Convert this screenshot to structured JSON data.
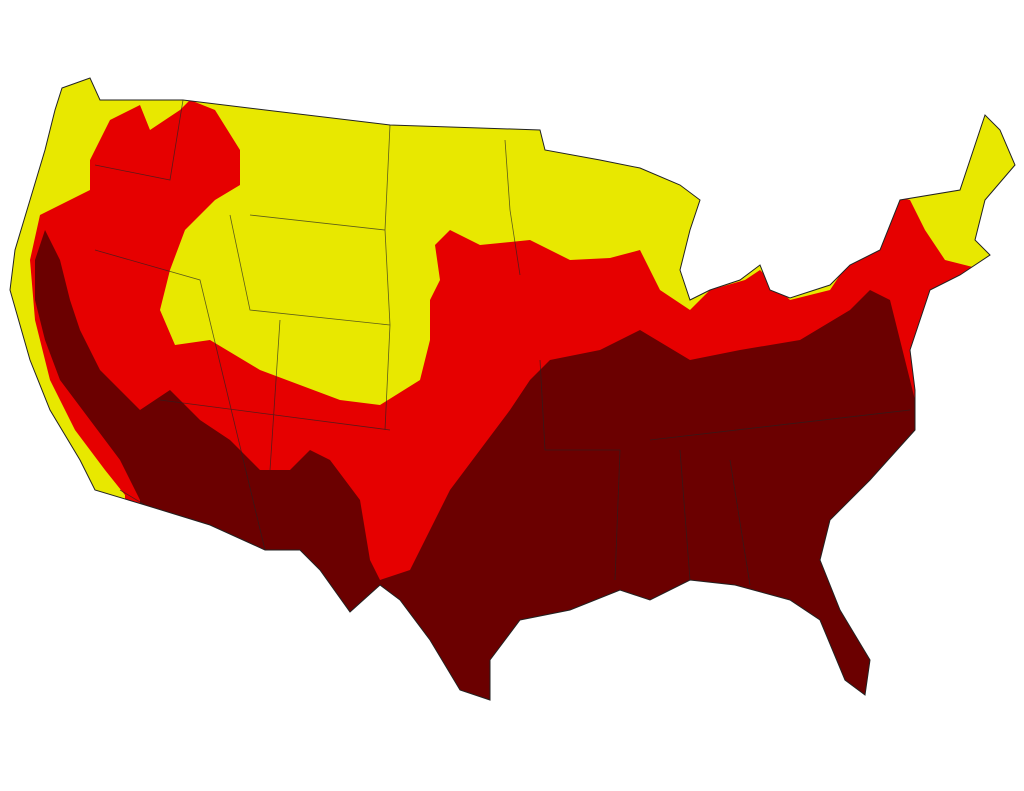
{
  "map": {
    "background": "#ffffff",
    "zones": [
      {
        "id": "lowest",
        "color": "#e8e800"
      },
      {
        "id": "middle",
        "color": "#e60000"
      },
      {
        "id": "highest",
        "color": "#6b0000"
      }
    ],
    "border_color": "#222222"
  }
}
